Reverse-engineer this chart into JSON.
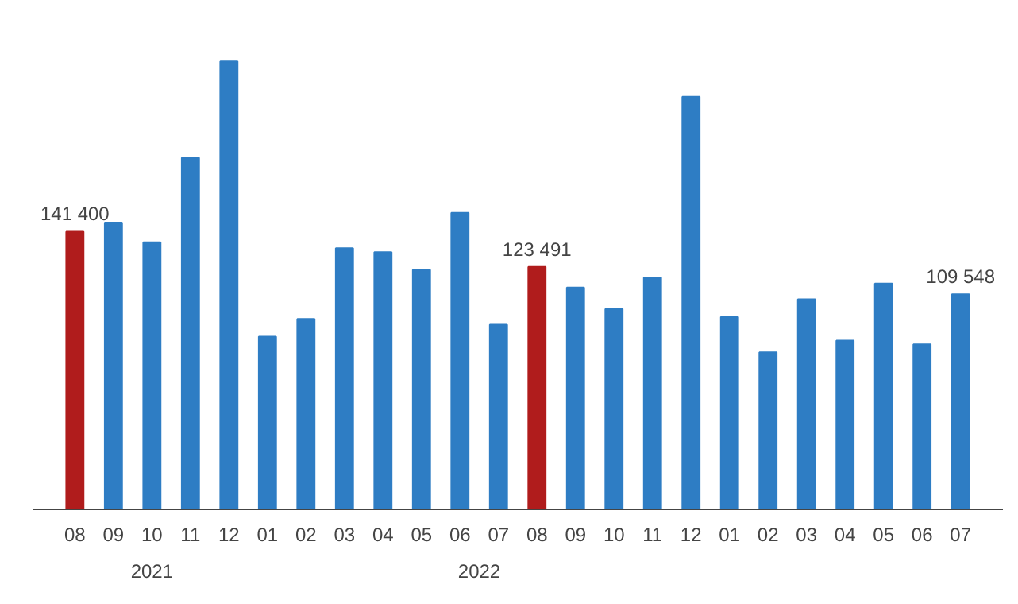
{
  "chart_data": {
    "type": "bar",
    "categories": [
      "08",
      "09",
      "10",
      "11",
      "12",
      "01",
      "02",
      "03",
      "04",
      "05",
      "06",
      "07",
      "08",
      "09",
      "10",
      "11",
      "12",
      "01",
      "02",
      "03",
      "04",
      "05",
      "06",
      "07"
    ],
    "values": [
      141400,
      146000,
      136000,
      179000,
      228000,
      88000,
      97000,
      133000,
      131000,
      122000,
      151000,
      94000,
      123491,
      113000,
      102000,
      118000,
      210000,
      98000,
      80000,
      107000,
      86000,
      115000,
      84000,
      109548
    ],
    "colors": [
      "#b01c1c",
      "#2e7dc4",
      "#2e7dc4",
      "#2e7dc4",
      "#2e7dc4",
      "#2e7dc4",
      "#2e7dc4",
      "#2e7dc4",
      "#2e7dc4",
      "#2e7dc4",
      "#2e7dc4",
      "#2e7dc4",
      "#b01c1c",
      "#2e7dc4",
      "#2e7dc4",
      "#2e7dc4",
      "#2e7dc4",
      "#2e7dc4",
      "#2e7dc4",
      "#2e7dc4",
      "#2e7dc4",
      "#2e7dc4",
      "#2e7dc4",
      "#2e7dc4"
    ],
    "value_labels": [
      "141 400",
      null,
      null,
      null,
      null,
      null,
      null,
      null,
      null,
      null,
      null,
      null,
      "123 491",
      null,
      null,
      null,
      null,
      null,
      null,
      null,
      null,
      null,
      null,
      "109 548"
    ],
    "annotations": [
      "2021",
      "2022"
    ],
    "grid": false
  }
}
